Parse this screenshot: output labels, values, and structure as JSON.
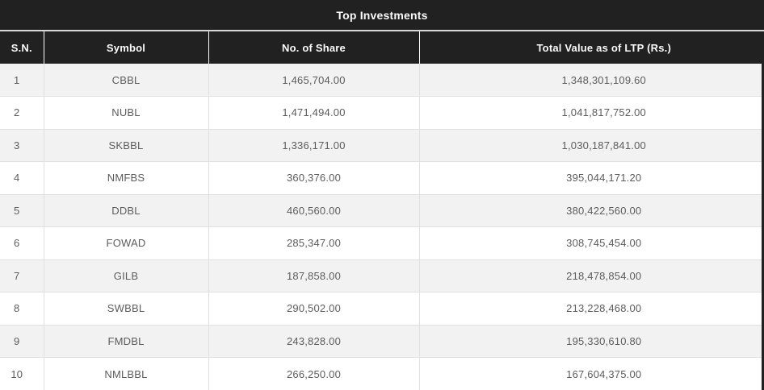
{
  "title": "Top Investments",
  "colors": {
    "page_bg": "#212121",
    "header_bg": "#212121",
    "header_text": "#fafafa",
    "divider_light": "#d8d8d8",
    "row_odd_bg": "#f2f2f2",
    "row_even_bg": "#ffffff",
    "row_border": "#e0e0e0",
    "body_text": "#5c5c5c"
  },
  "table": {
    "columns": [
      "S.N.",
      "Symbol",
      "No. of Share",
      "Total Value as of LTP (Rs.)"
    ],
    "rows": [
      [
        "1",
        "CBBL",
        "1,465,704.00",
        "1,348,301,109.60"
      ],
      [
        "2",
        "NUBL",
        "1,471,494.00",
        "1,041,817,752.00"
      ],
      [
        "3",
        "SKBBL",
        "1,336,171.00",
        "1,030,187,841.00"
      ],
      [
        "4",
        "NMFBS",
        "360,376.00",
        "395,044,171.20"
      ],
      [
        "5",
        "DDBL",
        "460,560.00",
        "380,422,560.00"
      ],
      [
        "6",
        "FOWAD",
        "285,347.00",
        "308,745,454.00"
      ],
      [
        "7",
        "GILB",
        "187,858.00",
        "218,478,854.00"
      ],
      [
        "8",
        "SWBBL",
        "290,502.00",
        "213,228,468.00"
      ],
      [
        "9",
        "FMDBL",
        "243,828.00",
        "195,330,610.80"
      ],
      [
        "10",
        "NMLBBL",
        "266,250.00",
        "167,604,375.00"
      ]
    ]
  }
}
